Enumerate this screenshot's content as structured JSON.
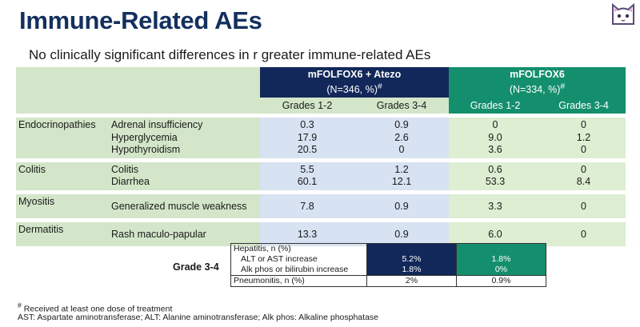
{
  "title": "Immune-Related AEs",
  "subtitle": "No clinically significant differences in r greater immune-related AEs",
  "arms": [
    {
      "name": "mFOLFOX6 + Atezo",
      "n_label": "(N=346, %)",
      "mark": "#",
      "color": "#12285a"
    },
    {
      "name": "mFOLFOX6",
      "n_label": "(N=334, %)",
      "mark": "#",
      "color": "#148f6e"
    }
  ],
  "grades": [
    "Grades 1-2",
    "Grades 3-4",
    "Grades 1-2",
    "Grades 3-4"
  ],
  "groups": [
    {
      "category": "Endocrinopathies",
      "events": [
        {
          "name": "Adrenal insufficiency",
          "values": [
            "0.3",
            "0.9",
            "0",
            "0"
          ]
        },
        {
          "name": "Hyperglycemia",
          "values": [
            "17.9",
            "2.6",
            "9.0",
            "1.2"
          ]
        },
        {
          "name": "Hypothyroidism",
          "values": [
            "20.5",
            "0",
            "3.6",
            "0"
          ]
        }
      ]
    },
    {
      "category": "Colitis",
      "events": [
        {
          "name": "Colitis",
          "values": [
            "5.5",
            "1.2",
            "0.6",
            "0"
          ]
        },
        {
          "name": "Diarrhea",
          "values": [
            "60.1",
            "12.1",
            "53.3",
            "8.4"
          ]
        }
      ]
    },
    {
      "category": "Myositis",
      "events": [
        {
          "name": "Generalized muscle weakness",
          "values": [
            "7.8",
            "0.9",
            "3.3",
            "0"
          ]
        }
      ]
    },
    {
      "category": "Dermatitis",
      "events": [
        {
          "name": "Rash maculo-papular",
          "values": [
            "13.3",
            "0.9",
            "6.0",
            "0"
          ]
        }
      ]
    }
  ],
  "grade34": {
    "label": "Grade 3-4",
    "hepatitis": "Hepatitis, n (%)",
    "rows": [
      {
        "name": "ALT or AST increase",
        "values": [
          "5.2%",
          "1.8%"
        ]
      },
      {
        "name": "Alk phos or bilirubin increase",
        "values": [
          "1.8%",
          "0%"
        ]
      }
    ],
    "pneumonitis": {
      "name": "Pneumonitis, n (%)",
      "values": [
        "2%",
        "0.9%"
      ]
    }
  },
  "footnotes": {
    "mark": "#",
    "note1": " Received at least one dose of treatment",
    "note2": "AST: Aspartate aminotransferase; ALT: Alanine aminotransferase; Alk phos: Alkaline phosphatase"
  },
  "colors": {
    "title": "#13305e",
    "navy": "#12285a",
    "green": "#148f6e",
    "light_green": "#d3e6c9",
    "light_blue": "#d7e2f2"
  }
}
